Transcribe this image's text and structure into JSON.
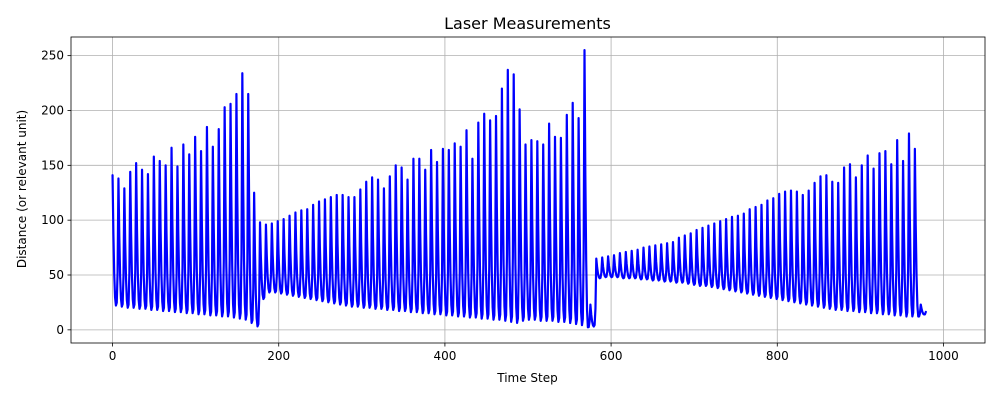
{
  "chart_data": {
    "type": "line",
    "title": "Laser Measurements",
    "xlabel": "Time Step",
    "ylabel": "Distance (or relevant unit)",
    "xlim": [
      -50,
      1050
    ],
    "ylim": [
      -12,
      267
    ],
    "xticks": [
      0,
      200,
      400,
      600,
      800,
      1000
    ],
    "yticks": [
      0,
      50,
      100,
      150,
      200,
      250
    ],
    "grid": true,
    "series": [
      {
        "color": "#0000ff",
        "period": 7.1,
        "cycles": [
          [
            141,
            22
          ],
          [
            138,
            21
          ],
          [
            129,
            20
          ],
          [
            144,
            20
          ],
          [
            152,
            19
          ],
          [
            146,
            19
          ],
          [
            142,
            18
          ],
          [
            158,
            18
          ],
          [
            154,
            17
          ],
          [
            150,
            17
          ],
          [
            166,
            16
          ],
          [
            149,
            16
          ],
          [
            169,
            15
          ],
          [
            160,
            15
          ],
          [
            176,
            14
          ],
          [
            163,
            14
          ],
          [
            185,
            13
          ],
          [
            167,
            13
          ],
          [
            183,
            12
          ],
          [
            203,
            12
          ],
          [
            206,
            11
          ],
          [
            215,
            10
          ],
          [
            234,
            9
          ],
          [
            215,
            6
          ],
          [
            125,
            3
          ],
          [
            98,
            28
          ],
          [
            96,
            34
          ],
          [
            97,
            34
          ],
          [
            99,
            33
          ],
          [
            101,
            32
          ],
          [
            104,
            31
          ],
          [
            107,
            30
          ],
          [
            109,
            29
          ],
          [
            110,
            28
          ],
          [
            114,
            27
          ],
          [
            117,
            26
          ],
          [
            119,
            25
          ],
          [
            121,
            24
          ],
          [
            123,
            23
          ],
          [
            123,
            22
          ],
          [
            121,
            21
          ],
          [
            121,
            21
          ],
          [
            128,
            20
          ],
          [
            135,
            20
          ],
          [
            139,
            19
          ],
          [
            137,
            19
          ],
          [
            129,
            18
          ],
          [
            140,
            18
          ],
          [
            150,
            17
          ],
          [
            148,
            17
          ],
          [
            137,
            16
          ],
          [
            156,
            16
          ],
          [
            156,
            15
          ],
          [
            146,
            15
          ],
          [
            164,
            14
          ],
          [
            153,
            14
          ],
          [
            165,
            13
          ],
          [
            164,
            13
          ],
          [
            170,
            12
          ],
          [
            167,
            12
          ],
          [
            182,
            11
          ],
          [
            156,
            11
          ],
          [
            189,
            10
          ],
          [
            197,
            10
          ],
          [
            191,
            9
          ],
          [
            195,
            9
          ],
          [
            220,
            8
          ],
          [
            237,
            7
          ],
          [
            233,
            6
          ],
          [
            201,
            8
          ],
          [
            169,
            9
          ],
          [
            173,
            9
          ],
          [
            172,
            8
          ],
          [
            169,
            8
          ],
          [
            188,
            8
          ],
          [
            176,
            7
          ],
          [
            175,
            7
          ],
          [
            196,
            6
          ],
          [
            207,
            5
          ],
          [
            193,
            4
          ],
          [
            255,
            2
          ],
          [
            23,
            3
          ],
          [
            65,
            47
          ],
          [
            66,
            48
          ],
          [
            67,
            48
          ],
          [
            68,
            48
          ],
          [
            70,
            47
          ],
          [
            71,
            47
          ],
          [
            72,
            47
          ],
          [
            73,
            46
          ],
          [
            75,
            46
          ],
          [
            76,
            45
          ],
          [
            77,
            45
          ],
          [
            78,
            44
          ],
          [
            79,
            44
          ],
          [
            80,
            43
          ],
          [
            84,
            43
          ],
          [
            86,
            42
          ],
          [
            88,
            41
          ],
          [
            91,
            40
          ],
          [
            93,
            40
          ],
          [
            95,
            39
          ],
          [
            97,
            38
          ],
          [
            99,
            37
          ],
          [
            101,
            36
          ],
          [
            103,
            35
          ],
          [
            104,
            34
          ],
          [
            106,
            33
          ],
          [
            110,
            32
          ],
          [
            112,
            31
          ],
          [
            114,
            30
          ],
          [
            118,
            29
          ],
          [
            120,
            28
          ],
          [
            124,
            27
          ],
          [
            126,
            26
          ],
          [
            127,
            25
          ],
          [
            126,
            24
          ],
          [
            123,
            23
          ],
          [
            127,
            22
          ],
          [
            134,
            21
          ],
          [
            140,
            20
          ],
          [
            141,
            19
          ],
          [
            135,
            18
          ],
          [
            134,
            18
          ],
          [
            148,
            17
          ],
          [
            151,
            17
          ],
          [
            139,
            16
          ],
          [
            150,
            16
          ],
          [
            159,
            15
          ],
          [
            147,
            15
          ],
          [
            161,
            14
          ],
          [
            163,
            14
          ],
          [
            151,
            13
          ],
          [
            173,
            13
          ],
          [
            154,
            12
          ],
          [
            179,
            12
          ],
          [
            165,
            12
          ],
          [
            23,
            14
          ]
        ]
      }
    ]
  }
}
